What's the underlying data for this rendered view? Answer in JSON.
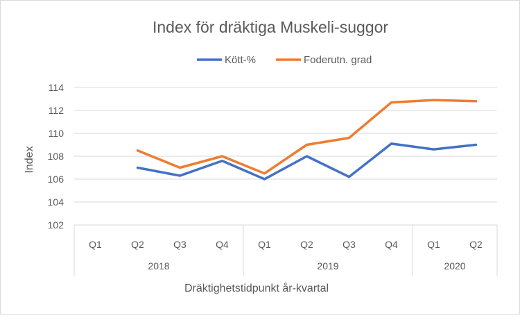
{
  "chart_data": {
    "type": "line",
    "title": "Index för dräktiga Muskeli-suggor",
    "xlabel": "Dräktighetstidpunkt år-kvartal",
    "ylabel": "Index",
    "ylim": [
      102,
      114
    ],
    "yticks": [
      102,
      104,
      106,
      108,
      110,
      112,
      114
    ],
    "grid": true,
    "legend_position": "top",
    "categories": [
      "Q1",
      "Q2",
      "Q3",
      "Q4",
      "Q1",
      "Q2",
      "Q3",
      "Q4",
      "Q1",
      "Q2"
    ],
    "groups": [
      {
        "label": "2018",
        "count": 4
      },
      {
        "label": "2019",
        "count": 4
      },
      {
        "label": "2020",
        "count": 2
      }
    ],
    "series": [
      {
        "name": "Kött-%",
        "color": "#4472C4",
        "values": [
          null,
          107.0,
          106.3,
          107.6,
          106.0,
          108.0,
          106.2,
          109.1,
          108.6,
          109.0
        ]
      },
      {
        "name": "Foderutn. grad",
        "color": "#ED7D31",
        "values": [
          null,
          108.5,
          107.0,
          108.0,
          106.5,
          109.0,
          109.6,
          112.7,
          112.9,
          112.8
        ]
      }
    ]
  }
}
